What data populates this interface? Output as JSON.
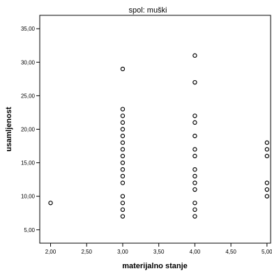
{
  "chart_data": {
    "type": "scatter",
    "title": "spol: muški",
    "xlabel": "materijalno stanje",
    "ylabel": "usamljenost",
    "xlim": [
      1.85,
      5.05
    ],
    "ylim": [
      3.0,
      37.0
    ],
    "xticks": [
      "2,00",
      "2,50",
      "3,00",
      "3,50",
      "4,00",
      "4,50",
      "5,00"
    ],
    "xtick_values": [
      2.0,
      2.5,
      3.0,
      3.5,
      4.0,
      4.5,
      5.0
    ],
    "yticks": [
      "5,00",
      "10,00",
      "15,00",
      "20,00",
      "25,00",
      "30,00",
      "35,00"
    ],
    "ytick_values": [
      5,
      10,
      15,
      20,
      25,
      30,
      35
    ],
    "grid": false,
    "marker": "open-circle",
    "series": [
      {
        "points": [
          [
            2.0,
            9
          ],
          [
            3.0,
            29
          ],
          [
            3.0,
            23
          ],
          [
            3.0,
            22
          ],
          [
            3.0,
            21
          ],
          [
            3.0,
            20
          ],
          [
            3.0,
            19
          ],
          [
            3.0,
            18
          ],
          [
            3.0,
            17
          ],
          [
            3.0,
            16
          ],
          [
            3.0,
            15
          ],
          [
            3.0,
            14
          ],
          [
            3.0,
            13
          ],
          [
            3.0,
            12
          ],
          [
            3.0,
            10
          ],
          [
            3.0,
            9
          ],
          [
            3.0,
            8
          ],
          [
            3.0,
            7
          ],
          [
            4.0,
            31
          ],
          [
            4.0,
            27
          ],
          [
            4.0,
            22
          ],
          [
            4.0,
            21
          ],
          [
            4.0,
            19
          ],
          [
            4.0,
            17
          ],
          [
            4.0,
            16
          ],
          [
            4.0,
            14
          ],
          [
            4.0,
            13
          ],
          [
            4.0,
            12
          ],
          [
            4.0,
            11
          ],
          [
            4.0,
            9
          ],
          [
            4.0,
            8
          ],
          [
            4.0,
            7
          ],
          [
            5.0,
            18
          ],
          [
            5.0,
            17
          ],
          [
            5.0,
            16
          ],
          [
            5.0,
            12
          ],
          [
            5.0,
            11
          ],
          [
            5.0,
            10
          ]
        ]
      }
    ]
  }
}
